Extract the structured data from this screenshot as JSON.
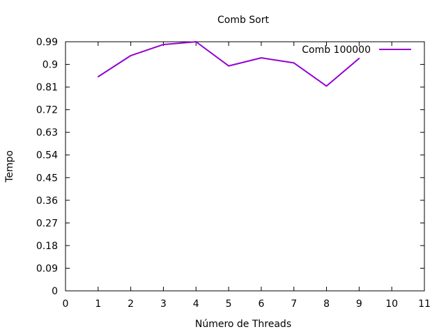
{
  "chart_data": {
    "type": "line",
    "title": "Comb Sort",
    "xlabel": "Número de Threads",
    "ylabel": "Tempo",
    "xlim": [
      0,
      11
    ],
    "ylim": [
      0,
      0.99
    ],
    "xticks": [
      0,
      1,
      2,
      3,
      4,
      5,
      6,
      7,
      8,
      9,
      10,
      11
    ],
    "yticks": [
      "0",
      "0.09",
      "0.18",
      "0.27",
      "0.36",
      "0.45",
      "0.54",
      "0.63",
      "0.72",
      "0.81",
      "0.9",
      "0.99"
    ],
    "grid": false,
    "legend_position": "top-right",
    "series": [
      {
        "name": "Comb 100000",
        "color": "#9400d3",
        "x": [
          1,
          2,
          3,
          4,
          5,
          6,
          7,
          8,
          9
        ],
        "y": [
          0.851,
          0.935,
          0.979,
          0.99,
          0.894,
          0.926,
          0.906,
          0.814,
          0.924
        ]
      }
    ]
  }
}
